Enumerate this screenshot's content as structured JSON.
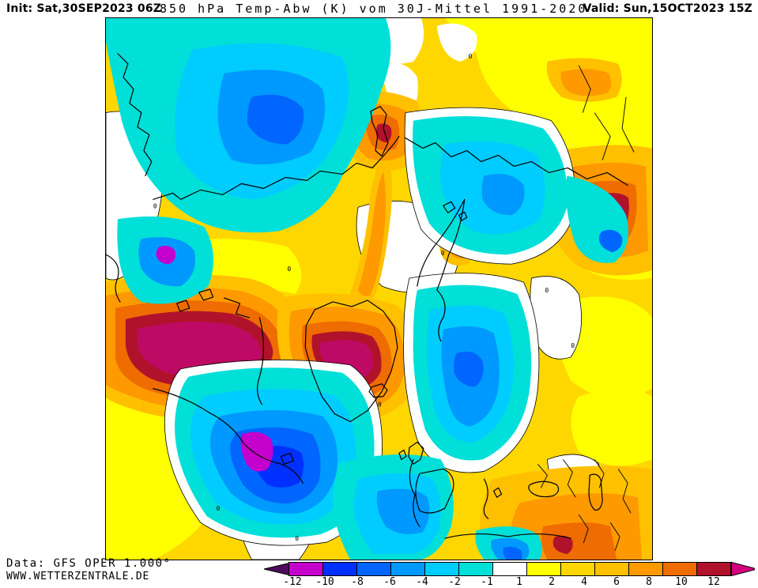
{
  "header": {
    "init": "Init: Sat,30SEP2023 06Z",
    "product": "850 hPa Temp-Abw (K) vom 30J-Mittel 1991-2020",
    "valid": "Valid: Sun,15OCT2023 15Z"
  },
  "footer": {
    "source": "Data: GFS OPER 1.000°",
    "website": "WWW.WETTERZENTRALE.DE"
  },
  "map": {
    "contour_label": "0"
  },
  "palette": {
    "base_gold": "#FFD700",
    "yellow": "#FFFF00",
    "white": "#FFFFFF",
    "cyan": "#00DFD8",
    "sky_blue": "#00CCFF",
    "azure": "#0099FF",
    "blue": "#0066FF",
    "deep_blue": "#0030FF",
    "cold_magenta": "#C400CC",
    "amber": "#FFC000",
    "orange": "#FF9900",
    "dark_orange": "#EE6C00",
    "dark_red": "#B1122B",
    "warm_crimson": "#BE0A64",
    "coastline": "#000000"
  },
  "colorbar": {
    "tick_labels": [
      "-12",
      "-10",
      "-8",
      "-6",
      "-4",
      "-2",
      "-1",
      "1",
      "2",
      "4",
      "6",
      "8",
      "10",
      "12"
    ],
    "segment_colors": [
      "#C400CC",
      "#0030FF",
      "#0066FF",
      "#0099FF",
      "#00CCFF",
      "#00DFD8",
      "#FFFFFF",
      "#FFFF00",
      "#FFD700",
      "#FFC000",
      "#FF9900",
      "#EE6C00",
      "#B1122B"
    ],
    "left_arrow_color": "#4E0B5A",
    "right_arrow_color": "#D4007E"
  }
}
